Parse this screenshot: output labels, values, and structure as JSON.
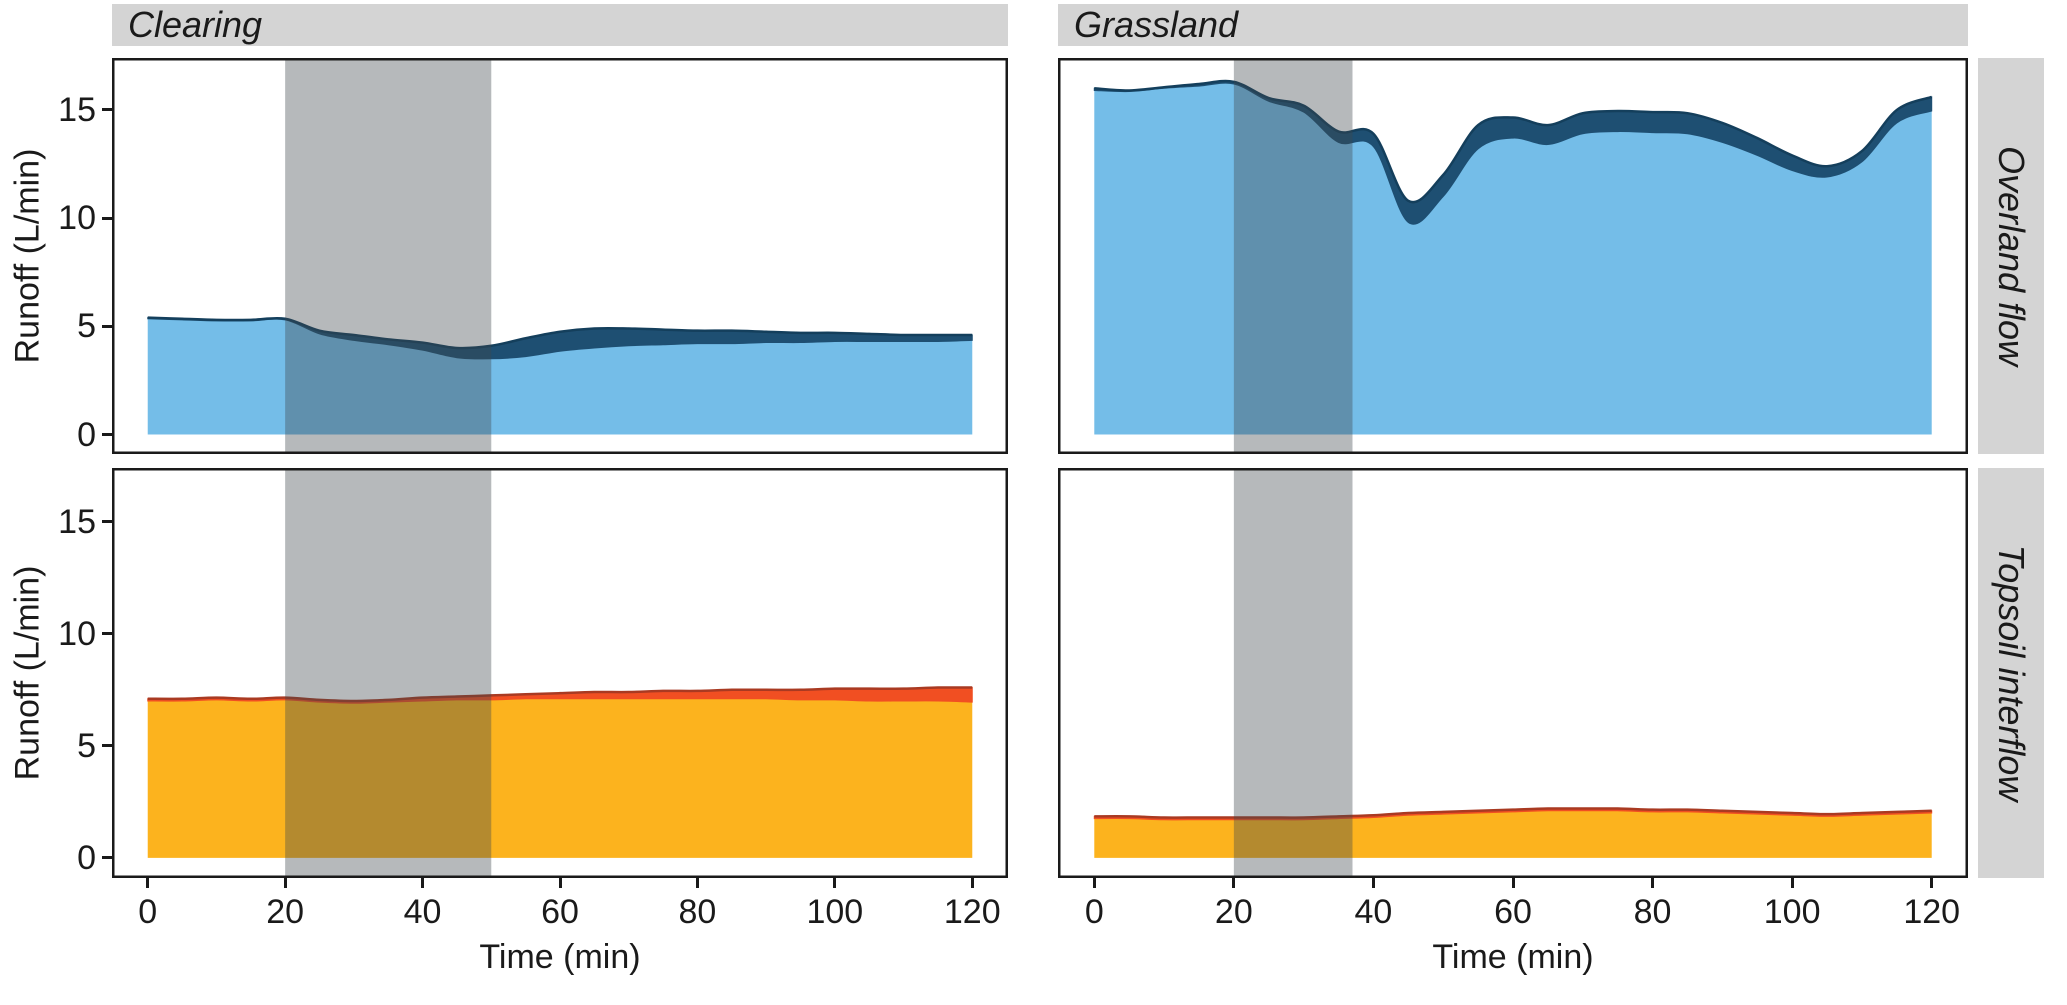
{
  "facets": {
    "cols": [
      "Clearing",
      "Grassland"
    ],
    "rows": [
      "Overland flow",
      "Topsoil interflow"
    ]
  },
  "axes": {
    "x_label": "Time (min)",
    "y_label": "Runoff (L/min)",
    "x_ticks": [
      0,
      20,
      40,
      60,
      80,
      100,
      120
    ],
    "y_ticks": [
      0,
      5,
      10,
      15
    ],
    "x_range": [
      -5.2,
      125.2
    ],
    "y_range": [
      -0.9,
      17.4
    ]
  },
  "style": {
    "strip_bg": "#d4d4d4",
    "panel_border": "#1a1a1a",
    "shade_fill": "#3f474c",
    "shade_opacity": 0.38,
    "light_blue": "#74bde8",
    "dark_blue": "#1e4f72",
    "blue_stroke": "#143f5c",
    "amber": "#fcb31e",
    "red_band": "#f14f22",
    "red_stroke": "#a93a22",
    "text_color": "#1a1a1a"
  },
  "chart_data": [
    {
      "type": "area",
      "panel": "clearing-overland-flow",
      "facet_col": "Clearing",
      "facet_row": "Overland flow",
      "x": [
        0,
        5,
        10,
        15,
        20,
        25,
        30,
        35,
        40,
        45,
        50,
        55,
        60,
        65,
        70,
        75,
        80,
        85,
        90,
        95,
        100,
        105,
        110,
        115,
        120
      ],
      "series": [
        {
          "name": "base-layer",
          "fill": "#74bde8",
          "values": [
            5.35,
            5.3,
            5.25,
            5.25,
            5.3,
            4.65,
            4.35,
            4.15,
            3.9,
            3.55,
            3.5,
            3.6,
            3.85,
            4.0,
            4.1,
            4.15,
            4.2,
            4.2,
            4.25,
            4.25,
            4.3,
            4.3,
            4.3,
            4.3,
            4.35
          ]
        },
        {
          "name": "total-with-top-band",
          "fill": "#1e4f72",
          "stroke": "#143f5c",
          "values": [
            5.4,
            5.35,
            5.3,
            5.3,
            5.35,
            4.8,
            4.6,
            4.4,
            4.25,
            4.0,
            4.1,
            4.45,
            4.75,
            4.9,
            4.9,
            4.85,
            4.8,
            4.8,
            4.75,
            4.7,
            4.7,
            4.65,
            4.6,
            4.6,
            4.6
          ]
        }
      ],
      "shade_x": [
        20,
        50
      ]
    },
    {
      "type": "area",
      "panel": "grassland-overland-flow",
      "facet_col": "Grassland",
      "facet_row": "Overland flow",
      "x": [
        0,
        5,
        10,
        15,
        20,
        25,
        30,
        35,
        40,
        45,
        50,
        55,
        60,
        65,
        70,
        75,
        80,
        85,
        90,
        95,
        100,
        105,
        110,
        115,
        120
      ],
      "series": [
        {
          "name": "base-layer",
          "fill": "#74bde8",
          "values": [
            15.9,
            15.85,
            16.0,
            16.1,
            16.2,
            15.4,
            14.9,
            13.5,
            13.3,
            9.8,
            11.0,
            13.2,
            13.7,
            13.4,
            13.9,
            14.0,
            13.95,
            13.9,
            13.5,
            12.9,
            12.2,
            11.9,
            12.6,
            14.4,
            14.95
          ]
        },
        {
          "name": "total-with-top-band",
          "fill": "#1e4f72",
          "stroke": "#143f5c",
          "values": [
            16.0,
            15.9,
            16.05,
            16.2,
            16.3,
            15.55,
            15.2,
            14.0,
            13.9,
            10.8,
            12.0,
            14.3,
            14.65,
            14.3,
            14.85,
            14.95,
            14.9,
            14.85,
            14.4,
            13.7,
            12.9,
            12.4,
            13.1,
            15.0,
            15.6
          ]
        }
      ],
      "shade_x": [
        20,
        37
      ]
    },
    {
      "type": "area",
      "panel": "clearing-topsoil-interflow",
      "facet_col": "Clearing",
      "facet_row": "Topsoil interflow",
      "x": [
        0,
        5,
        10,
        15,
        20,
        25,
        30,
        35,
        40,
        45,
        50,
        55,
        60,
        65,
        70,
        75,
        80,
        85,
        90,
        95,
        100,
        105,
        110,
        115,
        120
      ],
      "series": [
        {
          "name": "base-layer",
          "fill": "#fcb31e",
          "values": [
            7.0,
            7.0,
            7.05,
            7.0,
            7.05,
            6.95,
            6.9,
            6.95,
            7.0,
            7.05,
            7.05,
            7.1,
            7.1,
            7.1,
            7.1,
            7.1,
            7.1,
            7.1,
            7.1,
            7.05,
            7.05,
            7.0,
            7.0,
            7.0,
            6.95
          ]
        },
        {
          "name": "total-with-top-band",
          "fill": "#f14f22",
          "stroke": "#a93a22",
          "values": [
            7.1,
            7.1,
            7.15,
            7.1,
            7.15,
            7.05,
            7.0,
            7.05,
            7.15,
            7.2,
            7.25,
            7.3,
            7.35,
            7.4,
            7.4,
            7.45,
            7.45,
            7.5,
            7.5,
            7.5,
            7.55,
            7.55,
            7.55,
            7.6,
            7.6
          ]
        }
      ],
      "shade_x": [
        20,
        50
      ]
    },
    {
      "type": "area",
      "panel": "grassland-topsoil-interflow",
      "facet_col": "Grassland",
      "facet_row": "Topsoil interflow",
      "x": [
        0,
        5,
        10,
        15,
        20,
        25,
        30,
        35,
        40,
        45,
        50,
        55,
        60,
        65,
        70,
        75,
        80,
        85,
        90,
        95,
        100,
        105,
        110,
        115,
        120
      ],
      "series": [
        {
          "name": "base-layer",
          "fill": "#fcb31e",
          "values": [
            1.75,
            1.75,
            1.7,
            1.7,
            1.7,
            1.7,
            1.7,
            1.75,
            1.8,
            1.9,
            1.95,
            2.0,
            2.05,
            2.1,
            2.1,
            2.1,
            2.05,
            2.05,
            2.0,
            1.95,
            1.9,
            1.85,
            1.9,
            1.95,
            2.0
          ]
        },
        {
          "name": "total-with-top-band",
          "fill": "#f14f22",
          "stroke": "#a93a22",
          "values": [
            1.85,
            1.85,
            1.8,
            1.8,
            1.8,
            1.8,
            1.8,
            1.85,
            1.9,
            2.0,
            2.05,
            2.1,
            2.15,
            2.2,
            2.2,
            2.2,
            2.15,
            2.15,
            2.1,
            2.05,
            2.0,
            1.95,
            2.0,
            2.05,
            2.1
          ]
        }
      ],
      "shade_x": [
        20,
        37
      ]
    }
  ]
}
